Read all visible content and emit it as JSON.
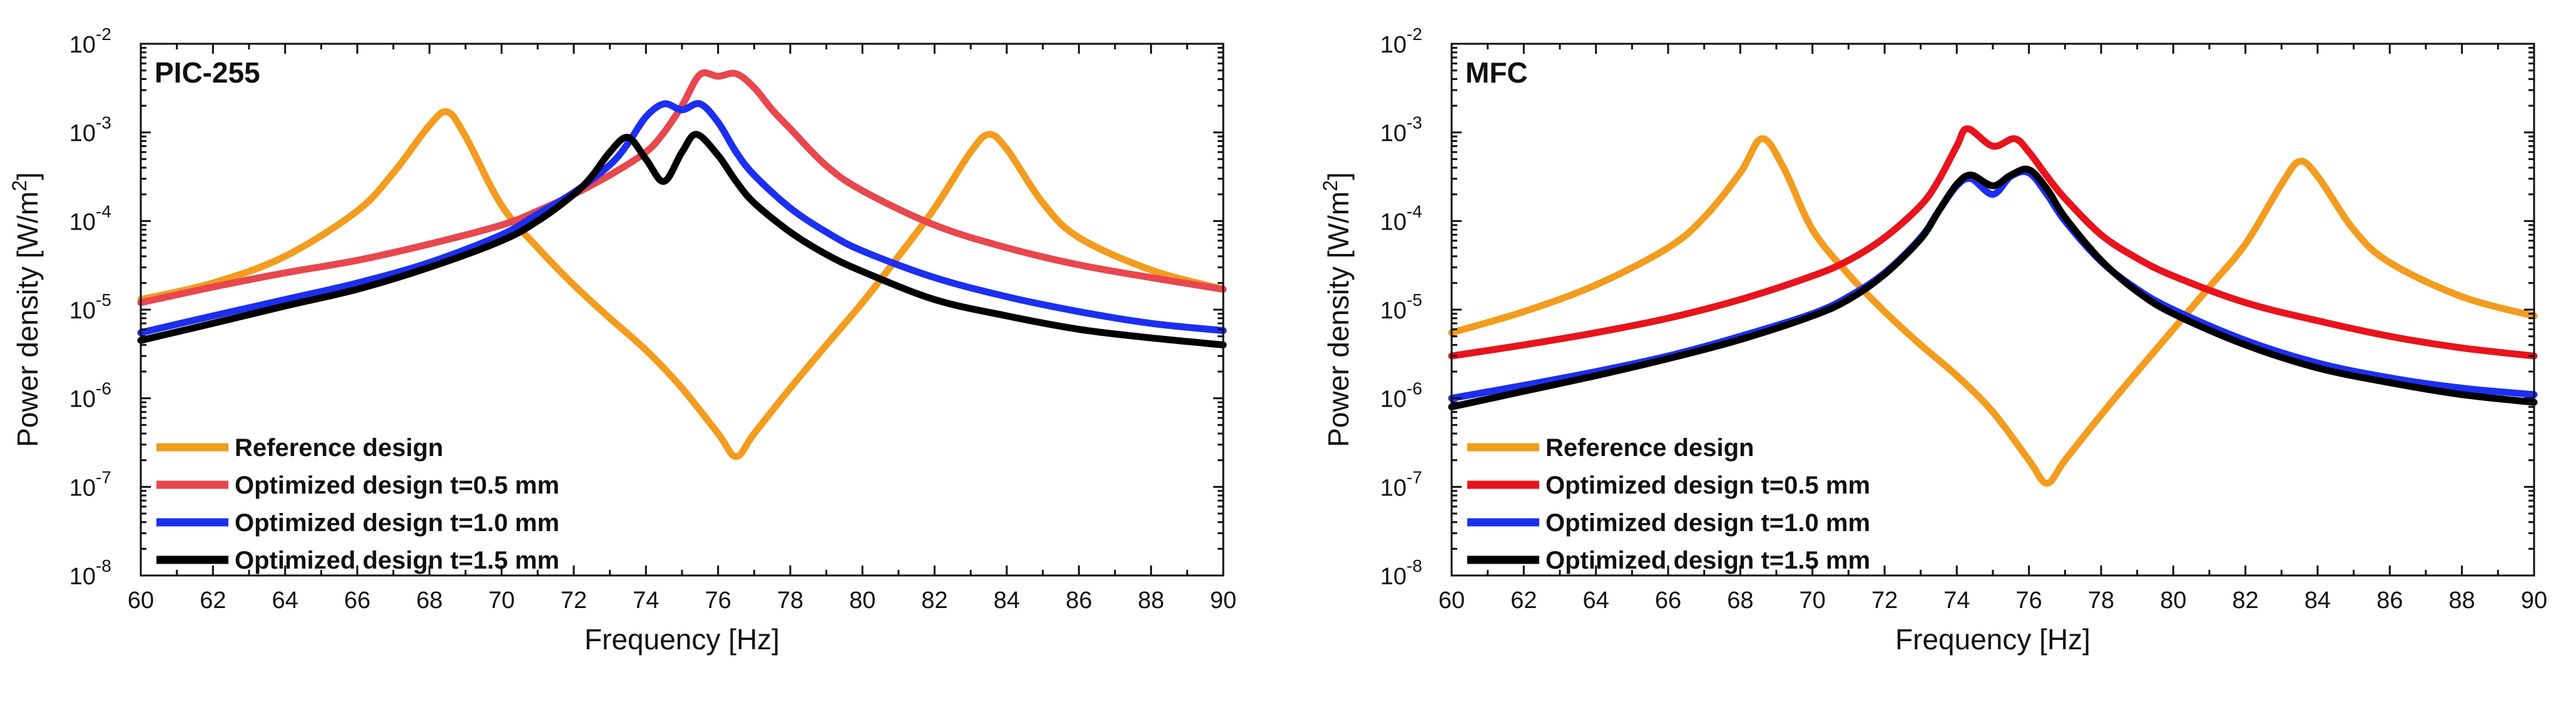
{
  "chart_data": [
    {
      "type": "line",
      "title": "PIC-255",
      "xlabel": "Frequency [Hz]",
      "ylabel": "Power density [W/m",
      "ylabel_sup": "2",
      "ylabel_end": "]",
      "xlim": [
        60,
        90
      ],
      "ylim_log10": [
        -8,
        -2
      ],
      "log_y": true,
      "grid": false,
      "legend_position": "bottom-left",
      "x_ticks": [
        "60",
        "62",
        "64",
        "66",
        "68",
        "70",
        "72",
        "74",
        "76",
        "78",
        "80",
        "82",
        "84",
        "86",
        "88",
        "90"
      ],
      "y_ticks": [
        {
          "base": "10",
          "exp": "-8"
        },
        {
          "base": "10",
          "exp": "-7"
        },
        {
          "base": "10",
          "exp": "-6"
        },
        {
          "base": "10",
          "exp": "-5"
        },
        {
          "base": "10",
          "exp": "-4"
        },
        {
          "base": "10",
          "exp": "-3"
        },
        {
          "base": "10",
          "exp": "-2"
        }
      ],
      "series": [
        {
          "name": "Reference design",
          "color": "#f39c1e",
          "x": [
            60,
            62,
            64,
            66,
            67,
            68,
            68.5,
            69,
            70,
            71,
            72,
            73,
            74,
            75,
            76,
            76.5,
            77,
            78,
            79,
            80,
            81,
            82,
            83,
            83.5,
            84,
            85,
            86,
            88,
            90
          ],
          "y": [
            1.3e-05,
            2e-05,
            4e-05,
            0.00013,
            0.00035,
            0.0012,
            0.0017,
            0.0009,
            0.00015,
            5e-05,
            1.9e-05,
            8e-06,
            3.5e-06,
            1.3e-06,
            4e-07,
            2.2e-07,
            4e-07,
            1.3e-06,
            4e-06,
            1.2e-05,
            4e-05,
            0.00014,
            0.0006,
            0.00095,
            0.00065,
            0.00016,
            6.5e-05,
            2.8e-05,
            1.7e-05
          ]
        },
        {
          "name": "Optimized design t=0.5 mm",
          "color": "#e8474e",
          "x": [
            60,
            62,
            64,
            66,
            68,
            70,
            71,
            72,
            73,
            74,
            74.5,
            75,
            75.5,
            76,
            76.5,
            77,
            77.5,
            78,
            79,
            80,
            82,
            84,
            86,
            88,
            90
          ],
          "y": [
            1.2e-05,
            1.8e-05,
            2.6e-05,
            3.6e-05,
            5.5e-05,
            9e-05,
            0.00013,
            0.0002,
            0.00033,
            0.0006,
            0.001,
            0.002,
            0.0045,
            0.0043,
            0.0046,
            0.0032,
            0.0018,
            0.0011,
            0.00042,
            0.00022,
            9e-05,
            5e-05,
            3.2e-05,
            2.3e-05,
            1.7e-05
          ]
        },
        {
          "name": "Optimized design t=1.0 mm",
          "color": "#1c2ff0",
          "x": [
            60,
            62,
            64,
            66,
            68,
            70,
            71,
            72,
            73,
            73.5,
            74,
            74.5,
            75,
            75.5,
            76,
            76.5,
            77,
            78,
            79,
            80,
            82,
            84,
            86,
            88,
            90
          ],
          "y": [
            5.5e-06,
            8.5e-06,
            1.3e-05,
            2e-05,
            3.4e-05,
            7e-05,
            0.00012,
            0.00021,
            0.00043,
            0.00075,
            0.0015,
            0.0021,
            0.0018,
            0.0021,
            0.0013,
            0.0006,
            0.00033,
            0.00014,
            7.5e-05,
            4.6e-05,
            2.3e-05,
            1.4e-05,
            9.5e-06,
            7e-06,
            5.8e-06
          ]
        },
        {
          "name": "Optimized design t=1.5 mm",
          "color": "#000000",
          "x": [
            60,
            62,
            64,
            66,
            68,
            70,
            71,
            72,
            72.5,
            73,
            73.5,
            74,
            74.5,
            75,
            75.4,
            76,
            76.5,
            77,
            78,
            79,
            80,
            82,
            84,
            86,
            88,
            90
          ],
          "y": [
            4.5e-06,
            7e-06,
            1.1e-05,
            1.7e-05,
            3e-05,
            6e-05,
            0.0001,
            0.0002,
            0.00032,
            0.0006,
            0.00088,
            0.0005,
            0.00028,
            0.0006,
            0.00095,
            0.00055,
            0.00028,
            0.00016,
            7.5e-05,
            4.2e-05,
            2.7e-05,
            1.3e-05,
            8.5e-06,
            6e-06,
            4.8e-06,
            4e-06
          ]
        }
      ]
    },
    {
      "type": "line",
      "title": "MFC",
      "xlabel": "Frequency [Hz]",
      "ylabel": "Power density [W/m",
      "ylabel_sup": "2",
      "ylabel_end": "]",
      "xlim": [
        60,
        90
      ],
      "ylim_log10": [
        -8,
        -2
      ],
      "log_y": true,
      "grid": false,
      "legend_position": "bottom-left",
      "x_ticks": [
        "60",
        "62",
        "64",
        "66",
        "68",
        "70",
        "72",
        "74",
        "76",
        "78",
        "80",
        "82",
        "84",
        "86",
        "88",
        "90"
      ],
      "y_ticks": [
        {
          "base": "10",
          "exp": "-8"
        },
        {
          "base": "10",
          "exp": "-7"
        },
        {
          "base": "10",
          "exp": "-6"
        },
        {
          "base": "10",
          "exp": "-5"
        },
        {
          "base": "10",
          "exp": "-4"
        },
        {
          "base": "10",
          "exp": "-3"
        },
        {
          "base": "10",
          "exp": "-2"
        }
      ],
      "series": [
        {
          "name": "Reference design",
          "color": "#f39c1e",
          "x": [
            60,
            62,
            64,
            66,
            67,
            68,
            68.6,
            69.2,
            70,
            71,
            72,
            73,
            74,
            75,
            76,
            76.5,
            77,
            78,
            79,
            80,
            81,
            82,
            83,
            83.5,
            84,
            85,
            86,
            88,
            90
          ],
          "y": [
            5.5e-06,
            9.5e-06,
            1.9e-05,
            5e-05,
            0.00011,
            0.00035,
            0.00085,
            0.0004,
            8e-05,
            2.5e-05,
            9.5e-06,
            4e-06,
            1.8e-06,
            7e-07,
            2e-07,
            1.1e-07,
            2e-07,
            6.5e-07,
            2e-06,
            6e-06,
            1.8e-05,
            5.5e-05,
            0.00026,
            0.00047,
            0.00032,
            8e-05,
            3.4e-05,
            1.4e-05,
            8.5e-06
          ]
        },
        {
          "name": "Optimized design t=0.5 mm",
          "color": "#e8141c",
          "x": [
            60,
            62,
            64,
            66,
            68,
            70,
            71,
            72,
            73,
            73.5,
            74,
            74.3,
            75,
            75.6,
            76,
            76.5,
            77,
            78,
            79,
            80,
            82,
            84,
            86,
            88,
            90
          ],
          "y": [
            3e-06,
            4e-06,
            5.5e-06,
            8e-06,
            1.3e-05,
            2.4e-05,
            3.6e-05,
            6.5e-05,
            0.00015,
            0.00029,
            0.0007,
            0.0011,
            0.0007,
            0.00085,
            0.0006,
            0.00032,
            0.00018,
            7e-05,
            3.8e-05,
            2.4e-05,
            1.2e-05,
            7.5e-06,
            5e-06,
            3.7e-06,
            3e-06
          ]
        },
        {
          "name": "Optimized design t=1.0 mm",
          "color": "#1c2ff0",
          "x": [
            60,
            62,
            64,
            66,
            68,
            70,
            71,
            72,
            73,
            73.5,
            74,
            74.4,
            75,
            75.5,
            76,
            76.5,
            77,
            78,
            79,
            80,
            82,
            84,
            86,
            88,
            90
          ],
          "y": [
            1e-06,
            1.4e-06,
            2e-06,
            3e-06,
            5e-06,
            9e-06,
            1.4e-05,
            2.6e-05,
            6.5e-05,
            0.00013,
            0.00025,
            0.0003,
            0.0002,
            0.00032,
            0.00035,
            0.0002,
            0.0001,
            3.5e-05,
            1.7e-05,
            1e-05,
            4.5e-06,
            2.5e-06,
            1.7e-06,
            1.3e-06,
            1.1e-06
          ]
        },
        {
          "name": "Optimized design t=1.5 mm",
          "color": "#000000",
          "x": [
            60,
            62,
            64,
            66,
            68,
            70,
            71,
            72,
            73,
            73.5,
            74,
            74.4,
            75,
            75.5,
            76,
            76.5,
            77,
            78,
            79,
            80,
            82,
            84,
            86,
            88,
            90
          ],
          "y": [
            8e-07,
            1.2e-06,
            1.8e-06,
            2.8e-06,
            4.6e-06,
            8.5e-06,
            1.3e-05,
            2.5e-05,
            6.3e-05,
            0.00013,
            0.00026,
            0.00033,
            0.00025,
            0.00033,
            0.00038,
            0.00023,
            0.00011,
            3.6e-05,
            1.6e-05,
            9e-06,
            4e-06,
            2.2e-06,
            1.5e-06,
            1.1e-06,
            9e-07
          ]
        }
      ]
    }
  ]
}
